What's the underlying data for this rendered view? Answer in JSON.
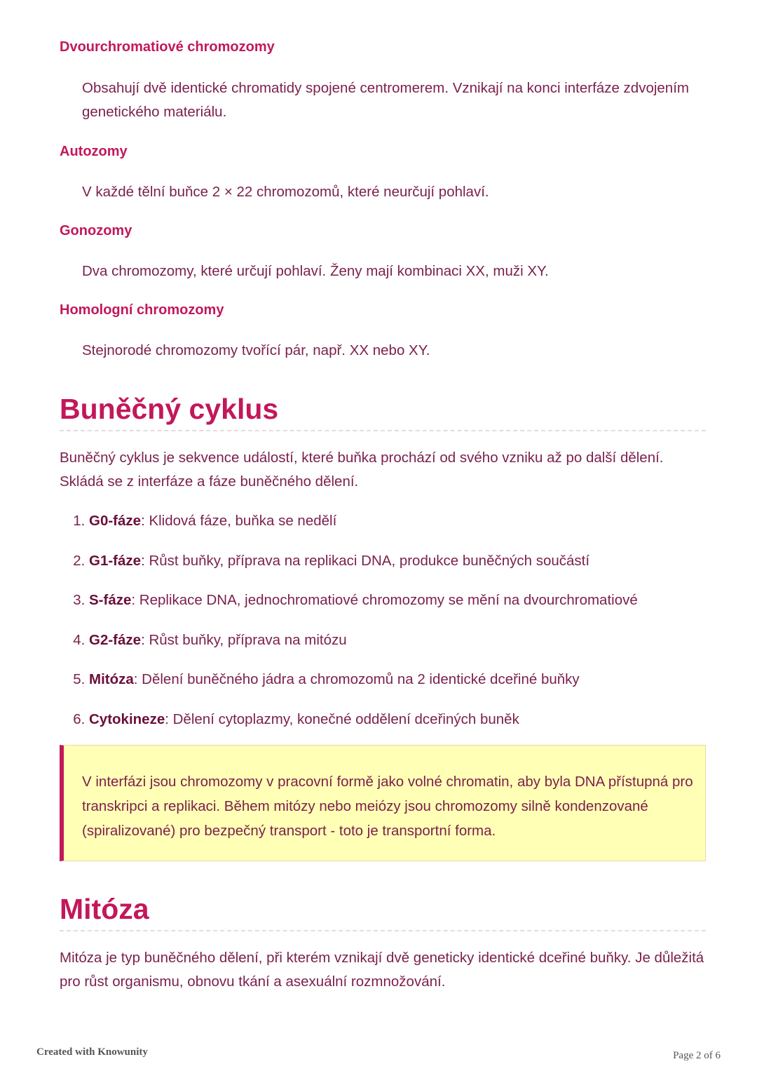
{
  "definitions": [
    {
      "term": "Dvourchromatiové chromozomy",
      "text": "Obsahují dvě identické chromatidy spojené centromerem. Vznikají na konci interfáze zdvojením genetického materiálu."
    },
    {
      "term": "Autozomy",
      "text": "V každé tělní buňce 2 × 22 chromozomů, které neurčují pohlaví."
    },
    {
      "term": "Gonozomy",
      "text": "Dva chromozomy, které určují pohlaví. Ženy mají kombinaci XX, muži XY."
    },
    {
      "term": "Homologní chromozomy",
      "text": "Stejnorodé chromozomy tvořící pár, např. XX nebo XY."
    }
  ],
  "cell_cycle": {
    "heading": "Buněčný cyklus",
    "intro": "Buněčný cyklus je sekvence událostí, které buňka prochází od svého vzniku až po další dělení. Skládá se z interfáze a fáze buněčného dělení.",
    "phases": [
      {
        "name": "G0-fáze",
        "desc": ": Klidová fáze, buňka se nedělí"
      },
      {
        "name": "G1-fáze",
        "desc": ": Růst buňky, příprava na replikaci DNA, produkce buněčných součástí"
      },
      {
        "name": "S-fáze",
        "desc": ": Replikace DNA, jednochromatiové chromozomy se mění na dvourchromatiové"
      },
      {
        "name": "G2-fáze",
        "desc": ": Růst buňky, příprava na mitózu"
      },
      {
        "name": "Mitóza",
        "desc": ": Dělení buněčného jádra a chromozomů na 2 identické dceřiné buňky"
      },
      {
        "name": "Cytokineze",
        "desc": ": Dělení cytoplazmy, konečné oddělení dceřiných buněk"
      }
    ],
    "note": "V interfázi jsou chromozomy v pracovní formě jako volné chromatin, aby byla DNA přístupná pro transkripci a replikaci. Během mitózy nebo meiózy jsou chromozomy silně kondenzované (spiralizované) pro bezpečný transport - toto je transportní forma."
  },
  "mitosis": {
    "heading": "Mitóza",
    "intro": "Mitóza je typ buněčného dělení, při kterém vznikají dvě geneticky identické dceřiné buňky. Je důležitá pro růst organismu, obnovu tkání a asexuální rozmnožování."
  },
  "footer": {
    "left": "Created with Knowunity",
    "right": "Page 2 of 6"
  },
  "colors": {
    "accent": "#c2185b",
    "text": "#7b1f4c",
    "note_bg": "#ffffb5"
  }
}
